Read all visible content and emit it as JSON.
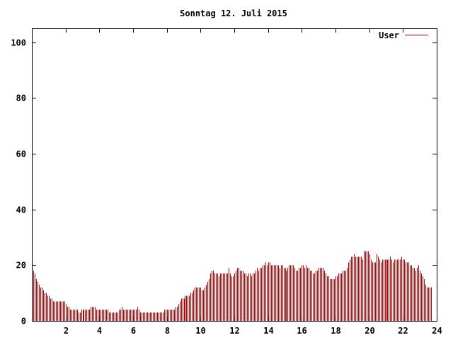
{
  "chart_data": {
    "type": "bar",
    "title": "Sonntag 12. Juli 2015",
    "xlabel": "",
    "ylabel": "",
    "xlim": [
      0,
      24
    ],
    "ylim": [
      0,
      105
    ],
    "xticks": [
      "2",
      "4",
      "6",
      "8",
      "10",
      "12",
      "14",
      "16",
      "18",
      "20",
      "22",
      "24"
    ],
    "yticks": [
      "0",
      "20",
      "40",
      "60",
      "80",
      "100"
    ],
    "grid": false,
    "legend": "top-right",
    "series": [
      {
        "name": "User",
        "color": "#c00000",
        "interval_minutes": 5,
        "values": [
          19,
          18,
          17,
          15,
          14,
          13,
          12,
          12,
          11,
          10,
          10,
          9,
          9,
          8,
          8,
          7,
          7,
          7,
          7,
          7,
          7,
          7,
          7,
          7,
          6,
          5,
          5,
          4,
          4,
          4,
          4,
          4,
          4,
          3,
          3,
          4,
          4,
          4,
          4,
          4,
          4,
          4,
          5,
          5,
          5,
          5,
          4,
          4,
          4,
          4,
          4,
          4,
          4,
          4,
          4,
          3,
          3,
          3,
          3,
          3,
          3,
          3,
          4,
          4,
          5,
          4,
          4,
          4,
          4,
          4,
          4,
          4,
          4,
          4,
          4,
          5,
          4,
          3,
          3,
          3,
          3,
          3,
          3,
          3,
          3,
          3,
          3,
          3,
          3,
          3,
          3,
          3,
          3,
          3,
          4,
          4,
          4,
          4,
          4,
          4,
          4,
          4,
          5,
          5,
          6,
          7,
          8,
          8,
          8,
          9,
          9,
          9,
          9,
          10,
          10,
          11,
          12,
          12,
          12,
          12,
          12,
          11,
          11,
          12,
          13,
          14,
          15,
          17,
          18,
          18,
          17,
          17,
          17,
          16,
          17,
          17,
          17,
          17,
          17,
          17,
          19,
          17,
          16,
          16,
          17,
          18,
          19,
          19,
          18,
          18,
          18,
          17,
          17,
          16,
          17,
          17,
          16,
          17,
          17,
          18,
          19,
          18,
          19,
          19,
          20,
          20,
          21,
          20,
          21,
          21,
          20,
          20,
          20,
          20,
          20,
          20,
          19,
          20,
          20,
          19,
          19,
          18,
          19,
          20,
          20,
          20,
          20,
          19,
          18,
          18,
          19,
          19,
          20,
          20,
          19,
          20,
          19,
          19,
          18,
          18,
          17,
          17,
          18,
          18,
          19,
          19,
          19,
          19,
          18,
          17,
          16,
          16,
          15,
          15,
          15,
          15,
          16,
          16,
          17,
          17,
          17,
          18,
          18,
          18,
          19,
          21,
          22,
          23,
          23,
          24,
          23,
          23,
          23,
          23,
          23,
          22,
          25,
          25,
          25,
          25,
          24,
          22,
          21,
          21,
          21,
          24,
          23,
          22,
          21,
          22,
          22,
          22,
          22,
          22,
          22,
          23,
          22,
          21,
          22,
          22,
          22,
          22,
          22,
          23,
          22,
          22,
          21,
          21,
          21,
          20,
          20,
          19,
          19,
          18,
          19,
          20,
          18,
          17,
          16,
          15,
          13,
          12,
          12,
          12,
          12
        ]
      }
    ]
  }
}
